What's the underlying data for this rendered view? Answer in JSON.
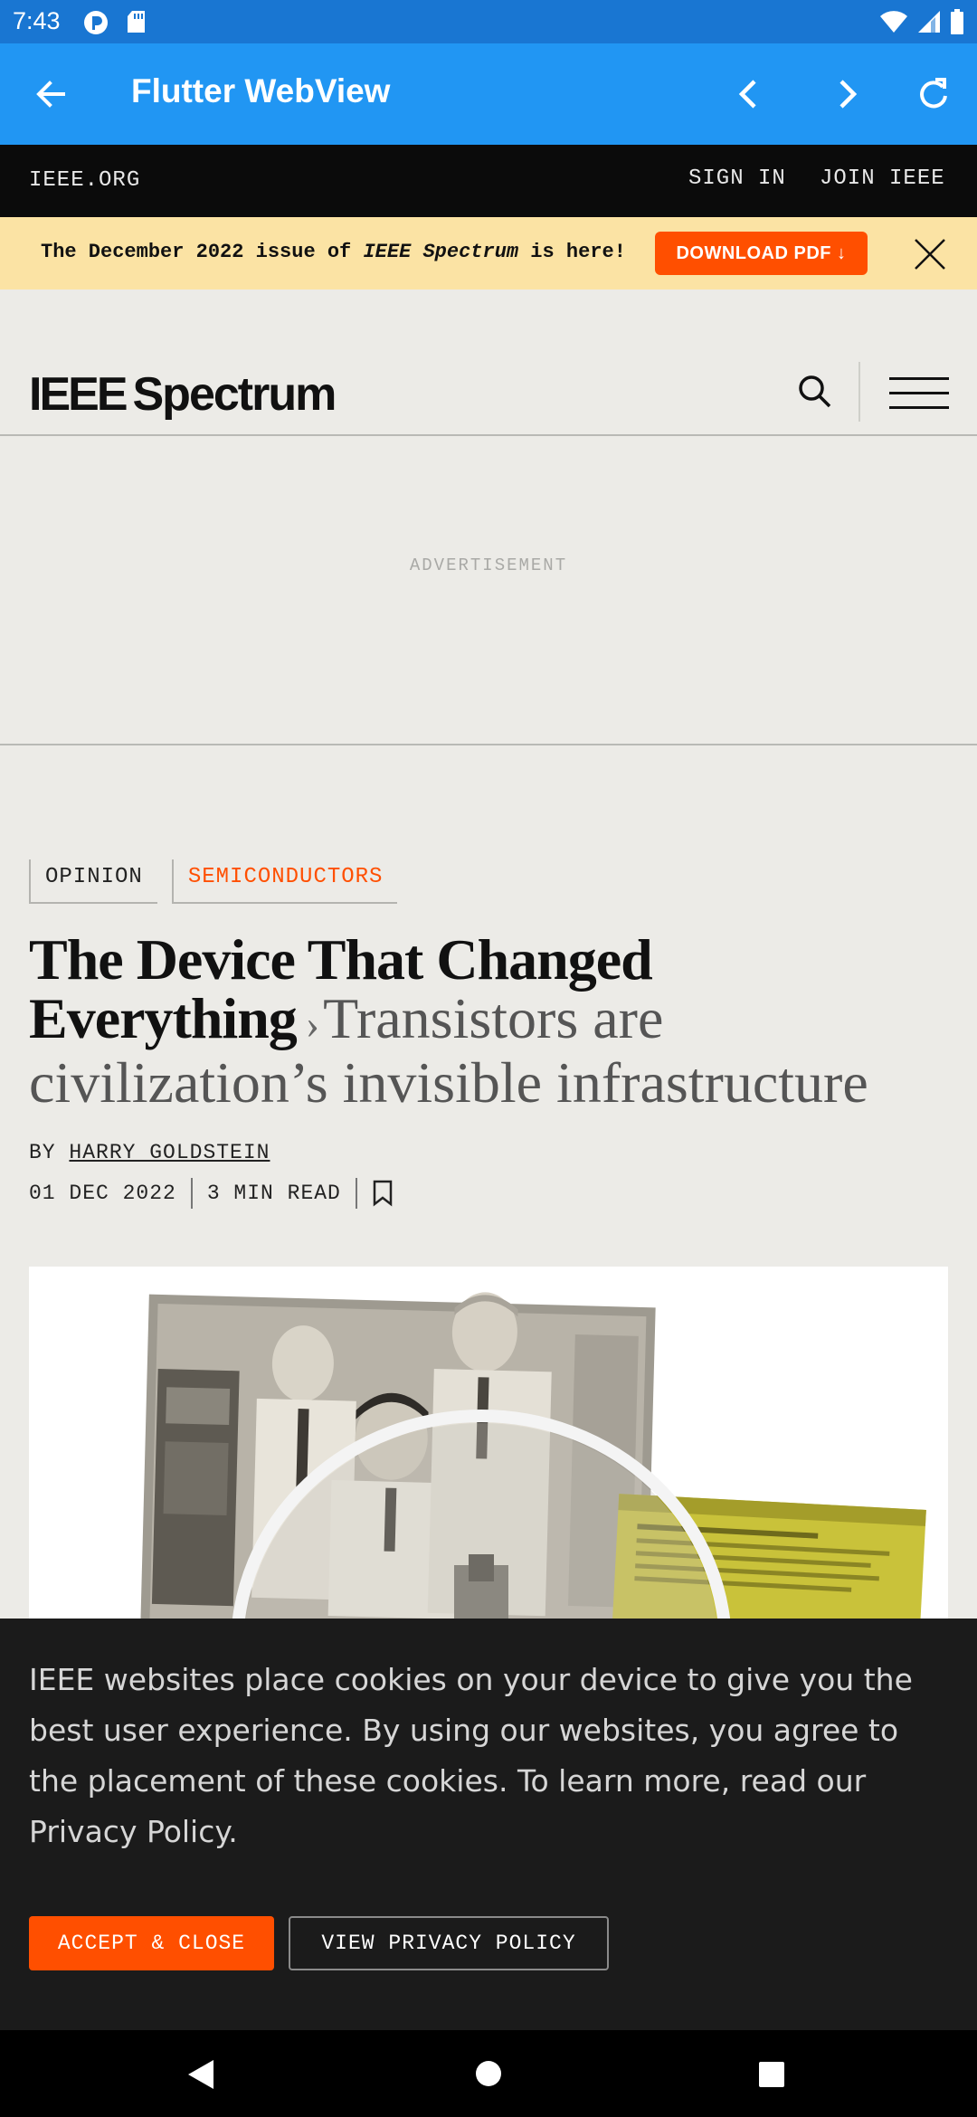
{
  "status_bar": {
    "time": "7:43",
    "icons": [
      "app-notification-icon",
      "sd-card-icon",
      "wifi-icon",
      "cell-signal-icon",
      "battery-icon"
    ]
  },
  "app_bar": {
    "title": "Flutter WebView",
    "icons": [
      "back-arrow-icon",
      "chevron-left-icon",
      "chevron-right-icon",
      "refresh-icon"
    ]
  },
  "ieee_bar": {
    "org": "IEEE.ORG",
    "sign_in": "SIGN IN",
    "join": "JOIN IEEE"
  },
  "promo": {
    "text_before": "The December 2022 issue of ",
    "text_italic": "IEEE Spectrum",
    "text_after": " is here!",
    "download_label": "DOWNLOAD PDF ↓"
  },
  "site_header": {
    "logo_ieee": "IEEE",
    "logo_spectrum": "Spectrum"
  },
  "ad": {
    "label": "ADVERTISEMENT"
  },
  "article": {
    "tags": [
      "OPINION",
      "SEMICONDUCTORS"
    ],
    "title_main": "The Device That Changed Everything",
    "title_chevron": "›",
    "title_sub": "Transistors are civilization’s invisible infrastructure",
    "by_prefix": "BY ",
    "author": "HARRY GOLDSTEIN",
    "date": "01 DEC 2022",
    "read_time": "3 MIN READ"
  },
  "cookie": {
    "message": "IEEE websites place cookies on your device to give you the best user experience. By using our websites, you agree to the placement of these cookies. To learn more, read our Privacy Policy.",
    "accept_label": "ACCEPT & CLOSE",
    "privacy_label": "VIEW PRIVACY POLICY"
  },
  "colors": {
    "status_bar": "#1976d2",
    "app_bar": "#2196f3",
    "accent_orange": "#ff4f00",
    "promo_bg": "#fbe3a4",
    "page_bg": "#ecebe7",
    "cookie_bg": "#1b1b1b"
  }
}
